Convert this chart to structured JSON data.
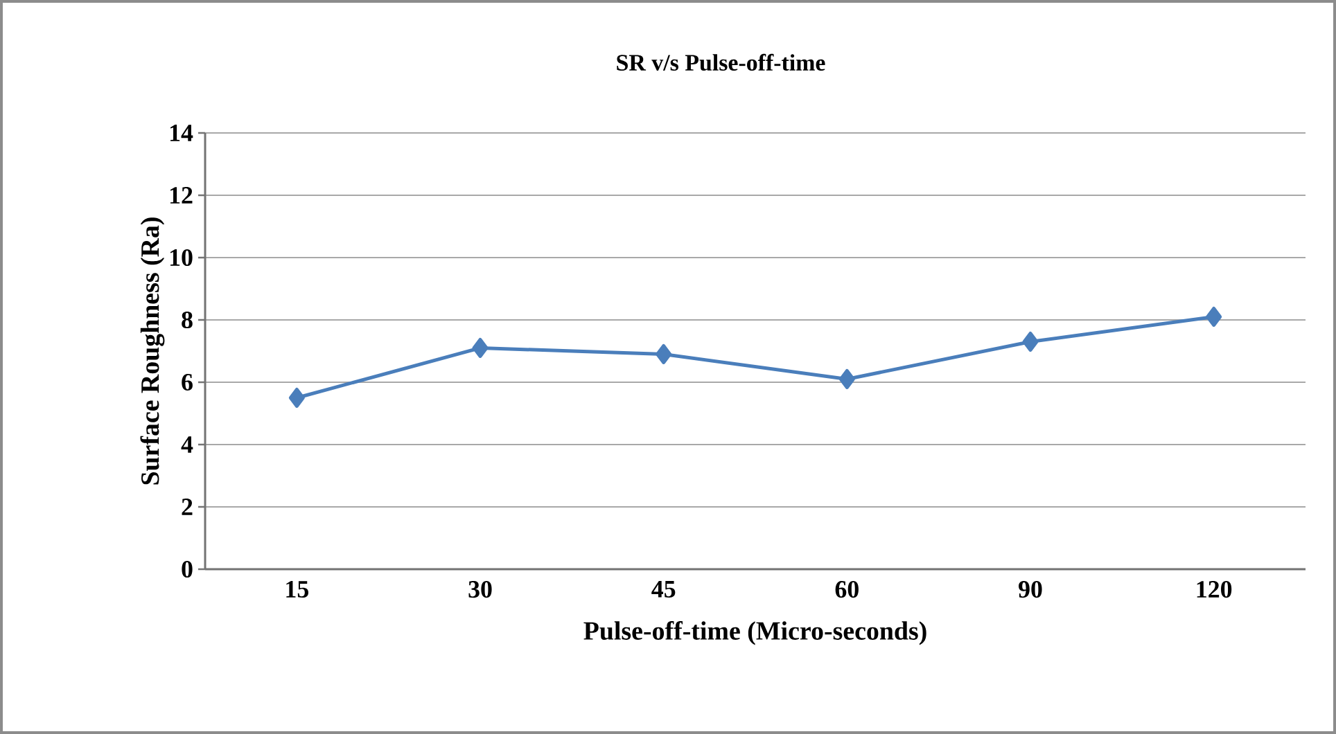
{
  "chart_data": {
    "type": "line",
    "title": "SR v/s Pulse-off-time",
    "xlabel": "Pulse-off-time (Micro-seconds)",
    "ylabel": "Surface  Roughness (Ra)",
    "categories": [
      "15",
      "30",
      "45",
      "60",
      "90",
      "120"
    ],
    "series": [
      {
        "color": "#4a7ebb",
        "values": [
          5.5,
          7.1,
          6.9,
          6.1,
          7.3,
          8.1
        ]
      }
    ],
    "ylim": [
      0,
      14
    ],
    "yticks": [
      0,
      2,
      4,
      6,
      8,
      10,
      12,
      14
    ],
    "grid": "y",
    "marker": "diamond",
    "line_style": "solid"
  }
}
